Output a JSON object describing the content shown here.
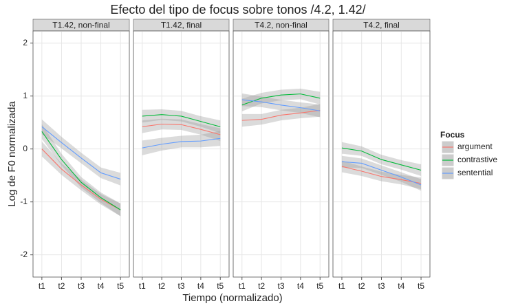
{
  "title": "Efecto del tipo de focus sobre tonos /4.2, 1.42/",
  "x_label": "Tiempo (normalizado)",
  "y_label": "Log de F0 normalizada",
  "legend_title": "Focus",
  "chart_data": [
    {
      "type": "line",
      "title": "T1.42, non-final",
      "categories": [
        "t1",
        "t2",
        "t3",
        "t4",
        "t5"
      ],
      "ylim": [
        -2.42,
        2.23
      ],
      "yticks": [
        -2,
        -1,
        0,
        1,
        2
      ],
      "grid": true,
      "series": [
        {
          "name": "argument",
          "color": "#F8766D",
          "values": [
            0.0,
            -0.38,
            -0.68,
            -0.95,
            -1.15
          ],
          "ci": [
            0.14,
            0.11,
            0.1,
            0.1,
            0.12
          ]
        },
        {
          "name": "contrastive",
          "color": "#00BA38",
          "values": [
            0.33,
            -0.2,
            -0.63,
            -0.92,
            -1.15
          ],
          "ci": [
            0.14,
            0.11,
            0.1,
            0.1,
            0.12
          ]
        },
        {
          "name": "sentential",
          "color": "#619CFF",
          "values": [
            0.42,
            0.12,
            -0.17,
            -0.45,
            -0.57
          ],
          "ci": [
            0.14,
            0.11,
            0.1,
            0.1,
            0.12
          ]
        }
      ]
    },
    {
      "type": "line",
      "title": "T1.42, final",
      "categories": [
        "t1",
        "t2",
        "t3",
        "t4",
        "t5"
      ],
      "ylim": [
        -2.42,
        2.23
      ],
      "yticks": [
        -2,
        -1,
        0,
        1,
        2
      ],
      "grid": true,
      "series": [
        {
          "name": "argument",
          "color": "#F8766D",
          "values": [
            0.42,
            0.47,
            0.46,
            0.37,
            0.27
          ],
          "ci": [
            0.12,
            0.1,
            0.1,
            0.1,
            0.12
          ]
        },
        {
          "name": "contrastive",
          "color": "#00BA38",
          "values": [
            0.62,
            0.65,
            0.62,
            0.52,
            0.42
          ],
          "ci": [
            0.12,
            0.1,
            0.1,
            0.1,
            0.12
          ]
        },
        {
          "name": "sentential",
          "color": "#619CFF",
          "values": [
            0.02,
            0.09,
            0.14,
            0.15,
            0.2
          ],
          "ci": [
            0.14,
            0.12,
            0.11,
            0.12,
            0.14
          ]
        }
      ]
    },
    {
      "type": "line",
      "title": "T4.2, non-final",
      "categories": [
        "t1",
        "t2",
        "t3",
        "t4",
        "t5"
      ],
      "ylim": [
        -2.42,
        2.23
      ],
      "yticks": [
        -2,
        -1,
        0,
        1,
        2
      ],
      "grid": true,
      "series": [
        {
          "name": "argument",
          "color": "#F8766D",
          "values": [
            0.54,
            0.56,
            0.64,
            0.68,
            0.73
          ],
          "ci": [
            0.12,
            0.1,
            0.1,
            0.1,
            0.12
          ]
        },
        {
          "name": "contrastive",
          "color": "#00BA38",
          "values": [
            0.83,
            0.96,
            1.02,
            1.04,
            0.96
          ],
          "ci": [
            0.12,
            0.1,
            0.1,
            0.1,
            0.12
          ]
        },
        {
          "name": "sentential",
          "color": "#619CFF",
          "values": [
            0.93,
            0.89,
            0.83,
            0.78,
            0.72
          ],
          "ci": [
            0.12,
            0.1,
            0.1,
            0.1,
            0.12
          ]
        }
      ]
    },
    {
      "type": "line",
      "title": "T4.2, final",
      "categories": [
        "t1",
        "t2",
        "t3",
        "t4",
        "t5"
      ],
      "ylim": [
        -2.42,
        2.23
      ],
      "yticks": [
        -2,
        -1,
        0,
        1,
        2
      ],
      "grid": true,
      "series": [
        {
          "name": "argument",
          "color": "#F8766D",
          "values": [
            -0.33,
            -0.42,
            -0.52,
            -0.58,
            -0.65
          ],
          "ci": [
            0.11,
            0.09,
            0.09,
            0.09,
            0.11
          ]
        },
        {
          "name": "contrastive",
          "color": "#00BA38",
          "values": [
            0.02,
            -0.04,
            -0.2,
            -0.3,
            -0.4
          ],
          "ci": [
            0.11,
            0.09,
            0.09,
            0.09,
            0.11
          ]
        },
        {
          "name": "sentential",
          "color": "#619CFF",
          "values": [
            -0.24,
            -0.27,
            -0.4,
            -0.53,
            -0.68
          ],
          "ci": [
            0.11,
            0.09,
            0.09,
            0.09,
            0.11
          ]
        }
      ]
    }
  ]
}
